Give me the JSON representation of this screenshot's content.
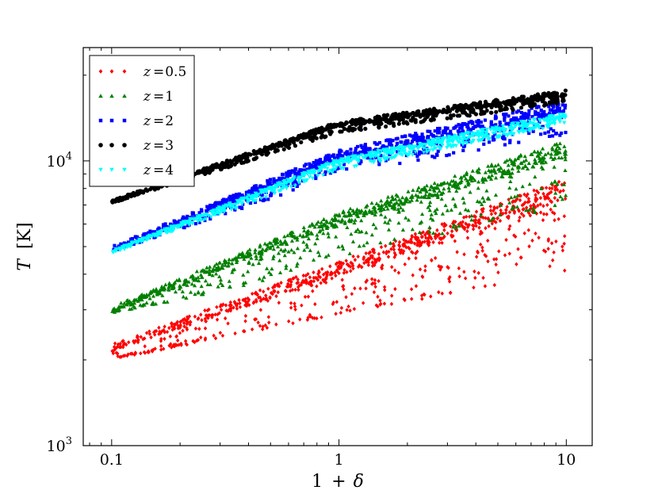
{
  "chart_data": {
    "type": "scatter",
    "title": "",
    "xlabel_main": "1",
    "xlabel_op": "+",
    "xlabel_sym": "δ",
    "ylabel_sym": "T",
    "ylabel_unit": "[K]",
    "xscale": "log",
    "yscale": "log",
    "xlim": [
      0.075,
      13.0
    ],
    "ylim": [
      1000,
      25000
    ],
    "grid": false,
    "legend_position": "top-left",
    "x_ticks": [
      {
        "value": 0.1,
        "label": "0.1"
      },
      {
        "value": 1,
        "label": "1"
      },
      {
        "value": 10,
        "label": "10"
      }
    ],
    "y_ticks": [
      {
        "value": 1000,
        "label_base": "10",
        "label_exp": "3"
      },
      {
        "value": 10000,
        "label_base": "10",
        "label_exp": "4"
      }
    ],
    "series": [
      {
        "name": "z=0.5",
        "legend_var": "z",
        "legend_value": "0.5",
        "marker": "diamond",
        "color": "#ff0000",
        "relation": {
          "y_at_x0_1": 2200,
          "y_at_x1": 4200,
          "y_at_x10": 8000
        },
        "scatter_below": 0.3,
        "scatter_above": 0.06,
        "lower_envelope": {
          "y_at_x0_1": 2000,
          "y_at_x1": 2900,
          "y_at_x10": 4000
        }
      },
      {
        "name": "z=1",
        "legend_var": "z",
        "legend_value": "1",
        "marker": "triangle",
        "color": "#008000",
        "relation": {
          "y_at_x0_1": 3000,
          "y_at_x1": 6300,
          "y_at_x10": 11000
        },
        "scatter_below": 0.2,
        "scatter_above": 0.05,
        "lower_envelope": {
          "y_at_x0_1": 2900,
          "y_at_x1": 4300,
          "y_at_x10": 7000
        }
      },
      {
        "name": "z=2",
        "legend_var": "z",
        "legend_value": "2",
        "marker": "square",
        "color": "#0000ff",
        "relation": {
          "y_at_x0_1": 4900,
          "y_at_x1": 10500,
          "y_at_x10": 15500
        },
        "scatter_below": 0.1,
        "scatter_above": 0.04,
        "lower_envelope": {
          "y_at_x0_1": 4800,
          "y_at_x1": 8800,
          "y_at_x10": 11500
        }
      },
      {
        "name": "z=3",
        "legend_var": "z",
        "legend_value": "3",
        "marker": "circle",
        "color": "#000000",
        "relation": {
          "y_at_x0_1": 7200,
          "y_at_x1": 13500,
          "y_at_x10": 17200
        },
        "scatter_below": 0.05,
        "scatter_above": 0.02,
        "lower_envelope": {
          "y_at_x0_1": 7100,
          "y_at_x1": 12500,
          "y_at_x10": 16000
        }
      },
      {
        "name": "z=4",
        "legend_var": "z",
        "legend_value": "4",
        "marker": "triangle-down",
        "color": "#00ffff",
        "relation": {
          "y_at_x0_1": 4800,
          "y_at_x1": 10000,
          "y_at_x10": 14400
        },
        "scatter_below": 0.06,
        "scatter_above": 0.02,
        "lower_envelope": {
          "y_at_x0_1": 4700,
          "y_at_x1": 9300,
          "y_at_x10": 13500
        }
      }
    ]
  }
}
